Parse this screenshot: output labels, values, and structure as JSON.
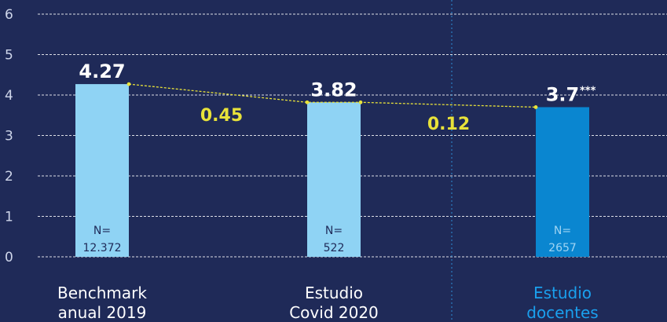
{
  "chart_data": {
    "type": "bar",
    "categories": [
      [
        "Benchmark",
        "anual 2019"
      ],
      [
        "Estudio",
        "Covid 2020"
      ],
      [
        "Estudio",
        "docentes"
      ]
    ],
    "values": [
      4.27,
      3.82,
      3.7
    ],
    "value_labels": [
      "4.27",
      "3.82",
      "3.7"
    ],
    "value_suffix": [
      null,
      null,
      "***"
    ],
    "n_labels": [
      [
        "N=",
        "12.372"
      ],
      [
        "N=",
        "522"
      ],
      [
        "N=",
        "2657"
      ]
    ],
    "differences": [
      {
        "label": "0.45",
        "between": [
          0,
          1
        ]
      },
      {
        "label": "0.12",
        "between": [
          1,
          2
        ]
      }
    ],
    "yticks": [
      "0",
      "1",
      "2",
      "3",
      "4",
      "5",
      "6"
    ],
    "ylim": [
      0,
      6
    ],
    "grid": true,
    "colors": {
      "background": "#1f2a58",
      "bar_light": "#8fd3f4",
      "bar_dark": "#0a86d0",
      "trend": "#e8e23a",
      "grid": "#ffffff",
      "divider": "#2d8fd6",
      "category_text": "#ffffff",
      "highlight_text": "#1aa0ee"
    },
    "bar_colors": [
      "#8fd3f4",
      "#8fd3f4",
      "#0a86d0"
    ]
  }
}
